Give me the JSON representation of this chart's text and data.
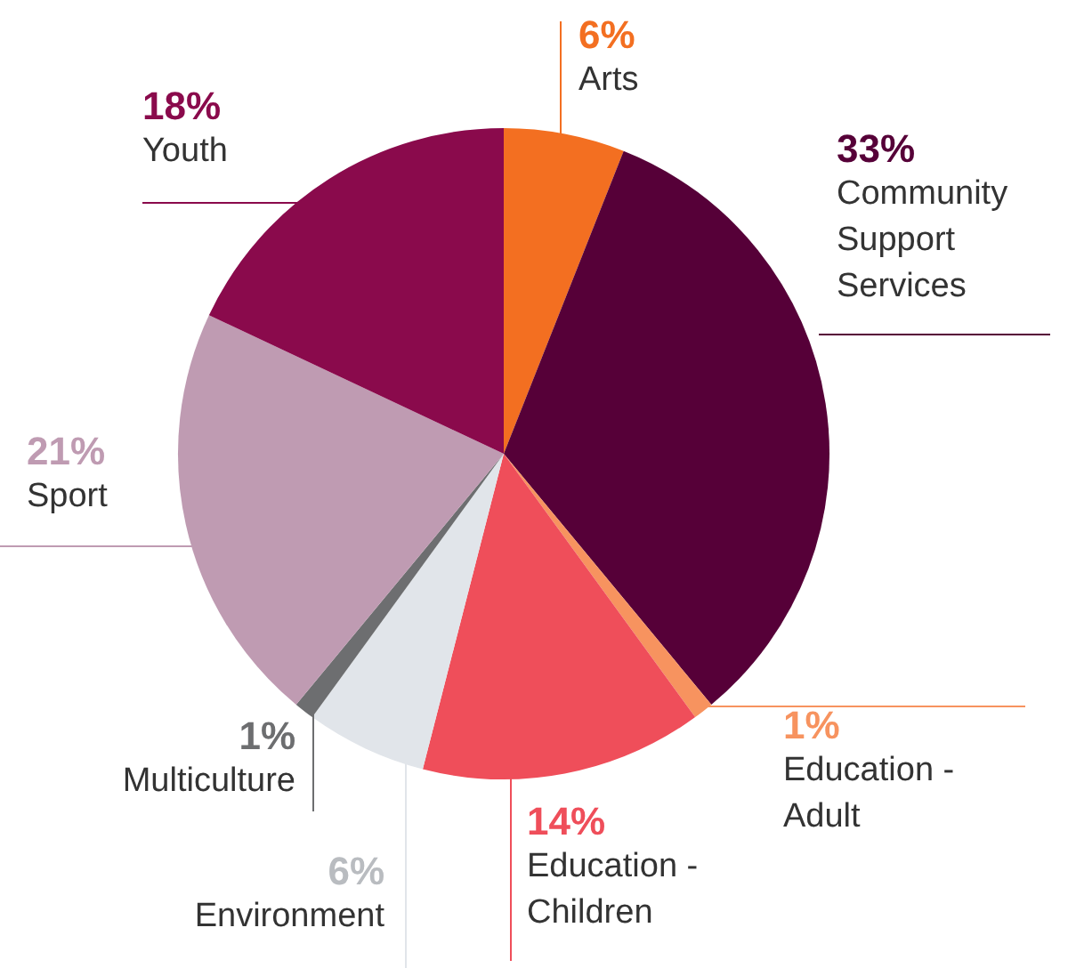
{
  "chart_data": {
    "type": "pie",
    "categories": [
      "Arts",
      "Community\nSupport\nServices",
      "Education -\nAdult",
      "Education -\nChildren",
      "Environment",
      "Multiculture",
      "Sport",
      "Youth"
    ],
    "values": [
      6,
      33,
      1,
      14,
      6,
      1,
      21,
      18
    ],
    "colors": [
      "#f36f21",
      "#560038",
      "#f7935f",
      "#ef4e5a",
      "#e1e5ea",
      "#6d6e70",
      "#bf9bb2",
      "#8a0a4c"
    ],
    "value_labels": [
      "6%",
      "33%",
      "1%",
      "14%",
      "6%",
      "1%",
      "21%",
      "18%"
    ],
    "legend": false
  }
}
